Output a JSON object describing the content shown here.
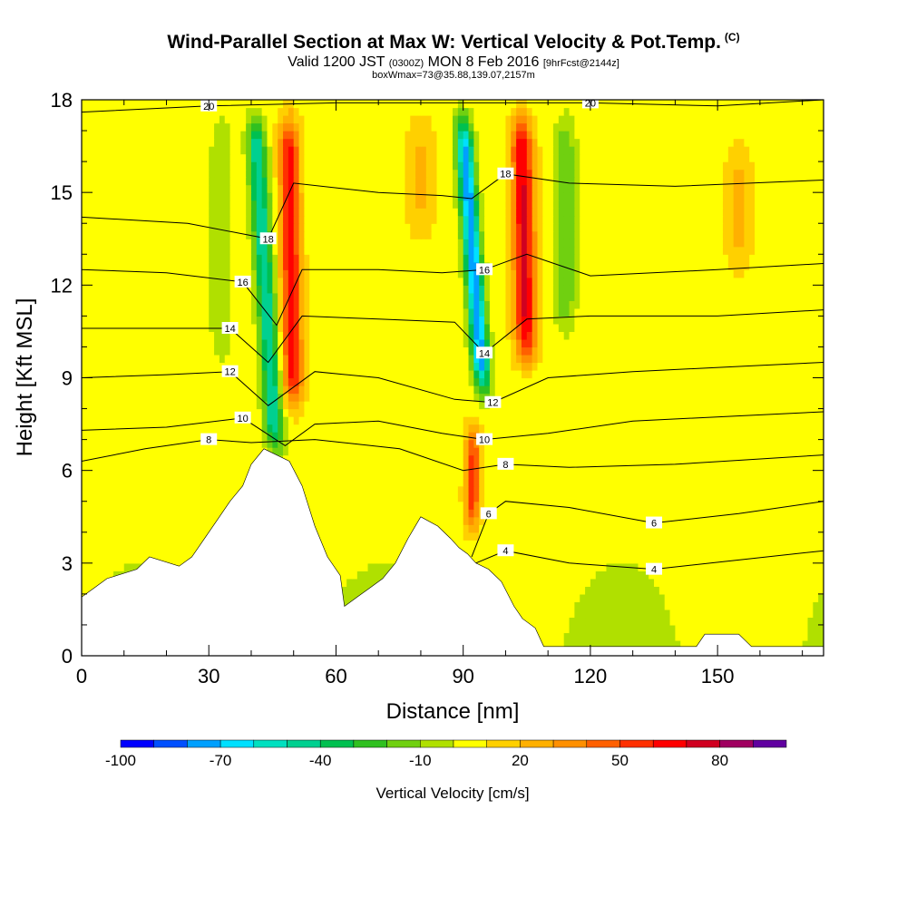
{
  "title": {
    "main": "Wind-Parallel Section at Max W: Vertical Velocity & Pot.Temp.",
    "copyright": "(C)",
    "valid_prefix": "Valid 1200 JST",
    "valid_utc": "(0300Z)",
    "valid_date": "MON 8 Feb 2016",
    "forecast_tag": "[9hrFcst@2144z]",
    "box_line": "boxWmax=73@35.88,139.07,2157m"
  },
  "chart_data": {
    "type": "heatmap",
    "xlabel": "Distance [nm]",
    "ylabel": "Height [Kft MSL]",
    "xlim": [
      0,
      175
    ],
    "ylim": [
      0,
      18
    ],
    "x_ticks": [
      "0",
      "30",
      "60",
      "90",
      "120",
      "150"
    ],
    "x_tick_values": [
      0,
      30,
      60,
      90,
      120,
      150
    ],
    "y_ticks": [
      "0",
      "3",
      "6",
      "9",
      "12",
      "15",
      "18"
    ],
    "y_tick_values": [
      0,
      3,
      6,
      9,
      12,
      15,
      18
    ],
    "colorbar": {
      "title": "Vertical Velocity [cm/s]",
      "labels": [
        "-100",
        "-70",
        "-40",
        "-10",
        "20",
        "50",
        "80"
      ],
      "label_values": [
        -100,
        -70,
        -40,
        -10,
        20,
        50,
        80
      ],
      "colors": [
        "#0000ff",
        "#0050ff",
        "#00a0ff",
        "#00e0ff",
        "#00e0c0",
        "#00d090",
        "#00c050",
        "#30c020",
        "#70d010",
        "#b0e000",
        "#ffff00",
        "#ffd000",
        "#ffb000",
        "#ff9000",
        "#ff6000",
        "#ff3000",
        "#ff0000",
        "#d00020",
        "#a00060",
        "#6000a0"
      ]
    },
    "terrain_profile": [
      [
        0,
        1.9
      ],
      [
        3,
        2.2
      ],
      [
        6,
        2.5
      ],
      [
        13,
        2.8
      ],
      [
        16,
        3.2
      ],
      [
        23,
        2.9
      ],
      [
        26,
        3.2
      ],
      [
        29,
        3.8
      ],
      [
        32,
        4.4
      ],
      [
        35,
        5.0
      ],
      [
        38,
        5.5
      ],
      [
        40,
        6.2
      ],
      [
        43,
        6.7
      ],
      [
        49,
        6.3
      ],
      [
        52,
        5.5
      ],
      [
        55,
        4.2
      ],
      [
        58,
        3.2
      ],
      [
        61,
        2.6
      ],
      [
        62,
        1.6
      ],
      [
        65,
        1.9
      ],
      [
        68,
        2.2
      ],
      [
        71,
        2.5
      ],
      [
        74,
        3.0
      ],
      [
        77,
        3.8
      ],
      [
        80,
        4.5
      ],
      [
        84,
        4.2
      ],
      [
        87,
        3.8
      ],
      [
        89,
        3.5
      ],
      [
        91,
        3.3
      ],
      [
        93,
        3.0
      ],
      [
        96,
        2.8
      ],
      [
        99,
        2.4
      ],
      [
        102,
        1.6
      ],
      [
        104,
        1.2
      ],
      [
        107,
        0.9
      ],
      [
        109,
        0.3
      ],
      [
        145,
        0.3
      ],
      [
        147,
        0.7
      ],
      [
        155,
        0.7
      ],
      [
        158,
        0.3
      ],
      [
        175,
        0.3
      ]
    ],
    "theta_contours": [
      {
        "label": "20",
        "points": [
          [
            0,
            17.6
          ],
          [
            30,
            17.8
          ],
          [
            60,
            17.9
          ],
          [
            90,
            17.9
          ],
          [
            120,
            17.9
          ],
          [
            150,
            17.8
          ],
          [
            175,
            18.0
          ]
        ]
      },
      {
        "label": "18",
        "points": [
          [
            0,
            14.2
          ],
          [
            25,
            14.0
          ],
          [
            44,
            13.5
          ],
          [
            50,
            15.3
          ],
          [
            70,
            15.0
          ],
          [
            85,
            14.9
          ],
          [
            92,
            14.8
          ],
          [
            100,
            15.6
          ],
          [
            115,
            15.3
          ],
          [
            140,
            15.2
          ],
          [
            175,
            15.4
          ]
        ]
      },
      {
        "label": "16",
        "points": [
          [
            0,
            12.5
          ],
          [
            20,
            12.4
          ],
          [
            38,
            12.1
          ],
          [
            46,
            10.7
          ],
          [
            52,
            12.5
          ],
          [
            70,
            12.5
          ],
          [
            85,
            12.4
          ],
          [
            95,
            12.5
          ],
          [
            105,
            13.0
          ],
          [
            120,
            12.3
          ],
          [
            150,
            12.5
          ],
          [
            175,
            12.7
          ]
        ]
      },
      {
        "label": "14",
        "points": [
          [
            0,
            10.6
          ],
          [
            20,
            10.6
          ],
          [
            35,
            10.6
          ],
          [
            44,
            9.5
          ],
          [
            52,
            11.0
          ],
          [
            70,
            10.9
          ],
          [
            88,
            10.8
          ],
          [
            95,
            9.8
          ],
          [
            105,
            10.9
          ],
          [
            120,
            11.0
          ],
          [
            150,
            11.0
          ],
          [
            175,
            11.2
          ]
        ]
      },
      {
        "label": "12",
        "points": [
          [
            0,
            9.0
          ],
          [
            20,
            9.1
          ],
          [
            35,
            9.2
          ],
          [
            44,
            8.1
          ],
          [
            55,
            9.2
          ],
          [
            70,
            9.0
          ],
          [
            88,
            8.3
          ],
          [
            97,
            8.2
          ],
          [
            110,
            9.0
          ],
          [
            130,
            9.2
          ],
          [
            160,
            9.4
          ],
          [
            175,
            9.5
          ]
        ]
      },
      {
        "label": "10",
        "points": [
          [
            0,
            7.3
          ],
          [
            20,
            7.4
          ],
          [
            38,
            7.7
          ],
          [
            48,
            6.8
          ],
          [
            55,
            7.5
          ],
          [
            70,
            7.6
          ],
          [
            85,
            7.2
          ],
          [
            95,
            7.0
          ],
          [
            110,
            7.2
          ],
          [
            130,
            7.6
          ],
          [
            175,
            7.9
          ]
        ]
      },
      {
        "label": "8",
        "points": [
          [
            0,
            6.3
          ],
          [
            15,
            6.7
          ],
          [
            30,
            7.0
          ],
          [
            40,
            6.9
          ],
          [
            55,
            7.0
          ],
          [
            75,
            6.7
          ],
          [
            90,
            6.0
          ],
          [
            100,
            6.2
          ],
          [
            115,
            6.1
          ],
          [
            140,
            6.2
          ],
          [
            175,
            6.5
          ]
        ]
      },
      {
        "label": "6",
        "points": [
          [
            92,
            3.2
          ],
          [
            96,
            4.6
          ],
          [
            100,
            5.0
          ],
          [
            115,
            4.8
          ],
          [
            135,
            4.3
          ],
          [
            155,
            4.6
          ],
          [
            175,
            5.0
          ]
        ]
      },
      {
        "label": "4",
        "points": [
          [
            93,
            3.0
          ],
          [
            100,
            3.4
          ],
          [
            115,
            3.0
          ],
          [
            135,
            2.8
          ],
          [
            155,
            3.1
          ],
          [
            175,
            3.4
          ]
        ]
      }
    ]
  }
}
